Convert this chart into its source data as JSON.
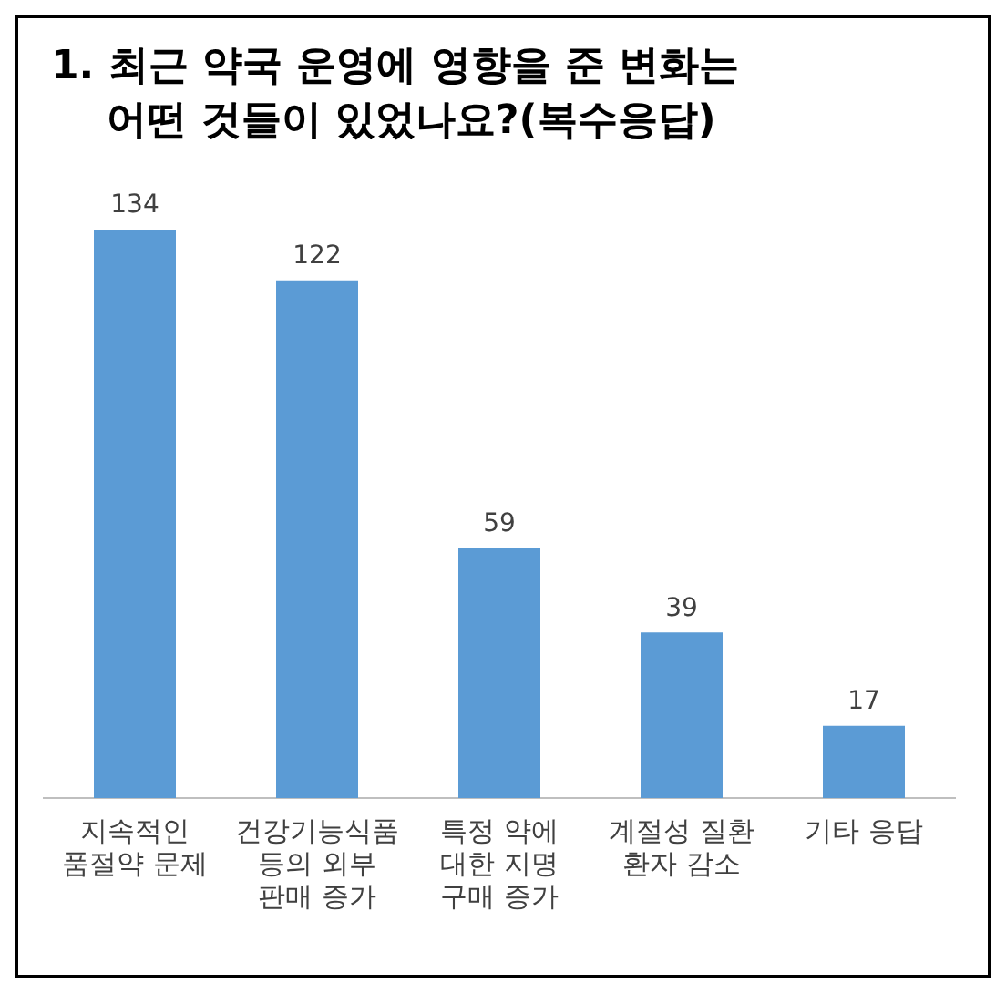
{
  "chart_data": {
    "type": "bar",
    "title": "1. 최근 약국 운영에 영향을 준 변화는\n    어떤 것들이 있었나요?(복수응답)",
    "categories": [
      "지속적인\n품절약 문제",
      "건강기능식품\n등의 외부\n판매 증가",
      "특정 약에\n대한 지명\n구매 증가",
      "계절성 질환\n환자 감소",
      "기타 응답"
    ],
    "values": [
      134,
      122,
      59,
      39,
      17
    ],
    "color": "#5b9bd5",
    "data_labels": true,
    "grid": false,
    "legend": false
  }
}
